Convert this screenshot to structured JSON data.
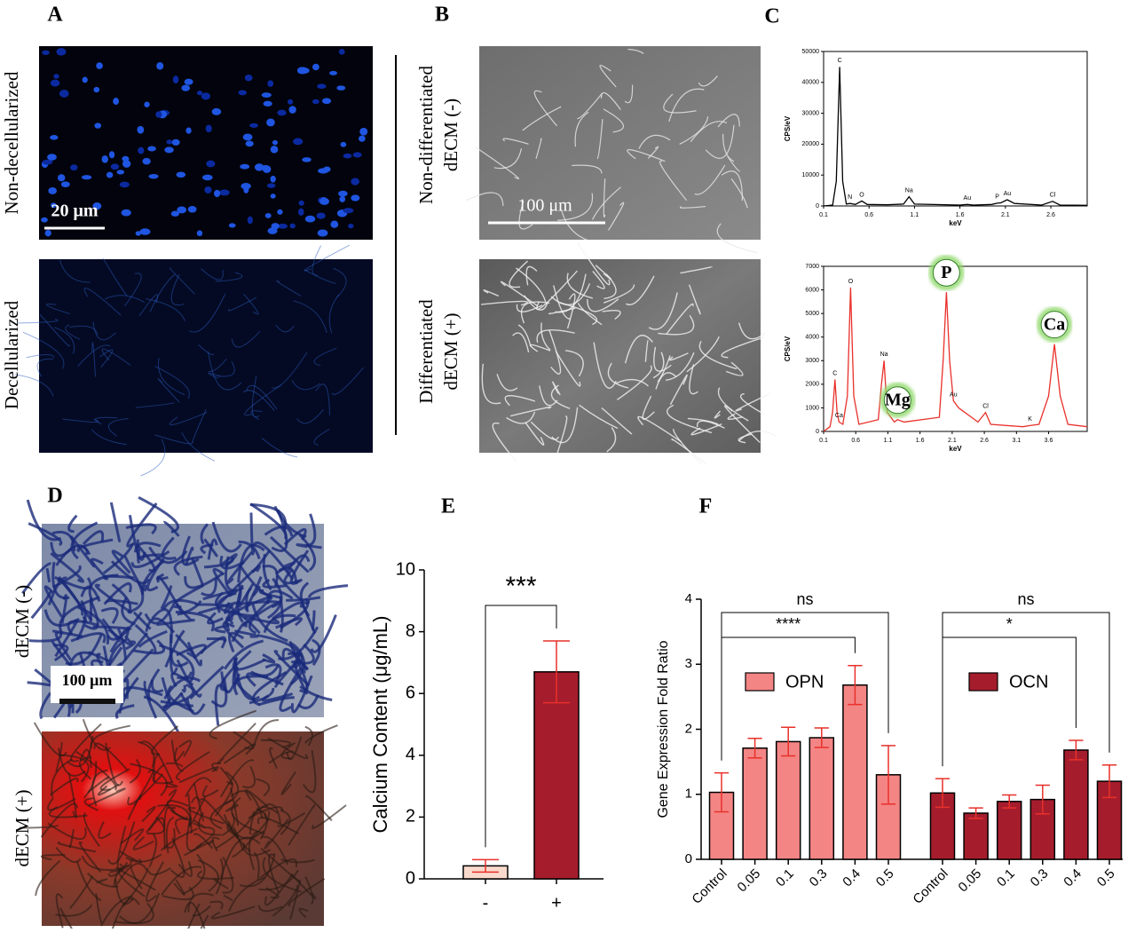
{
  "panel_labels": [
    "A",
    "B",
    "C",
    "D",
    "E",
    "F"
  ],
  "image_labels": {
    "a": [
      "Non-decellularized",
      "Decellularized"
    ],
    "b": [
      [
        "Non-differentiated",
        "dECM (-)"
      ],
      [
        "Differentiated",
        "dECM (+)"
      ]
    ],
    "d": [
      "dECM (-)",
      "dECM (+)"
    ]
  },
  "scale_bars": [
    "20 μm",
    "100 μm",
    "100 μm"
  ],
  "chart_data": [
    {
      "type": "line",
      "ylabel": "CPS/eV",
      "xlabel": "keV",
      "color": "#000000",
      "x": [
        0.1,
        0.2,
        0.24,
        0.277,
        0.31,
        0.35,
        0.39,
        0.45,
        0.52,
        0.58,
        0.8,
        0.98,
        1.04,
        1.1,
        1.6,
        1.68,
        1.75,
        1.95,
        2.01,
        2.05,
        2.12,
        2.2,
        2.5,
        2.62,
        2.7,
        3.0
      ],
      "values": [
        0,
        300,
        8000,
        45000,
        8000,
        600,
        800,
        500,
        1600,
        500,
        400,
        600,
        3000,
        600,
        300,
        500,
        300,
        500,
        900,
        1000,
        2000,
        800,
        300,
        1500,
        300,
        200
      ],
      "xlim": [
        0.1,
        3.0
      ],
      "xticks": [
        0.1,
        0.6,
        1.1,
        1.6,
        2.1,
        2.6
      ],
      "ylim": [
        0,
        50000
      ],
      "yticks": [
        0,
        10000,
        20000,
        30000,
        40000,
        50000
      ],
      "annotations": [
        {
          "text": "C",
          "x": 0.277
        },
        {
          "text": "N",
          "x": 0.39
        },
        {
          "text": "O",
          "x": 0.52
        },
        {
          "text": "Na",
          "x": 1.04
        },
        {
          "text": "Au",
          "x": 1.68
        },
        {
          "text": "P",
          "x": 2.01
        },
        {
          "text": "Au",
          "x": 2.12
        },
        {
          "text": "Cl",
          "x": 2.62
        }
      ]
    },
    {
      "type": "line",
      "ylabel": "CPS/eV",
      "xlabel": "keV",
      "color": "#e8302a",
      "x": [
        0.1,
        0.2,
        0.24,
        0.277,
        0.31,
        0.34,
        0.4,
        0.47,
        0.52,
        0.57,
        0.65,
        0.95,
        1.0,
        1.04,
        1.09,
        1.2,
        1.25,
        1.35,
        1.9,
        1.96,
        2.01,
        2.06,
        2.12,
        2.2,
        2.5,
        2.62,
        2.7,
        3.2,
        3.31,
        3.45,
        3.6,
        3.69,
        3.78,
        3.9,
        4.2
      ],
      "values": [
        0,
        200,
        800,
        2200,
        800,
        400,
        300,
        1500,
        6100,
        1500,
        300,
        500,
        2000,
        3000,
        800,
        400,
        500,
        400,
        600,
        3000,
        5900,
        3000,
        1300,
        1000,
        400,
        800,
        300,
        200,
        250,
        300,
        1500,
        3700,
        1500,
        300,
        200
      ],
      "xlim": [
        0.1,
        4.2
      ],
      "xticks": [
        0.1,
        0.6,
        1.1,
        1.6,
        2.1,
        2.6,
        3.1,
        3.6
      ],
      "ylim": [
        0,
        7000
      ],
      "yticks": [
        0,
        1000,
        2000,
        3000,
        4000,
        5000,
        6000,
        7000
      ],
      "annotations": [
        {
          "text": "C",
          "x": 0.277
        },
        {
          "text": "Ca",
          "x": 0.34
        },
        {
          "text": "O",
          "x": 0.52
        },
        {
          "text": "Na",
          "x": 1.04
        },
        {
          "text": "Mg",
          "x": 1.25,
          "circled": true
        },
        {
          "text": "P",
          "x": 2.01,
          "circled": true
        },
        {
          "text": "Au",
          "x": 2.12
        },
        {
          "text": "Cl",
          "x": 2.62
        },
        {
          "text": "K",
          "x": 3.31
        },
        {
          "text": "Ca",
          "x": 3.69,
          "circled": true
        }
      ]
    },
    {
      "type": "bar",
      "ylabel": "Calcium Content (μg/mL)",
      "categories": [
        "-",
        "+"
      ],
      "values": [
        0.42,
        6.7
      ],
      "errors": [
        0.2,
        1.0
      ],
      "colors": [
        "#f9d9cc",
        "#a51d2d"
      ],
      "error_color": "#e8302a",
      "ylim": [
        0,
        10
      ],
      "yticks": [
        0,
        2,
        4,
        6,
        8,
        10
      ],
      "significance": [
        {
          "label": "***",
          "between": [
            0,
            1
          ]
        }
      ]
    },
    {
      "type": "bar",
      "ylabel": "Gene Expression Fold Ratio",
      "categories": [
        "Control",
        "0.05",
        "0.1",
        "0.3",
        "0.4",
        "0.5"
      ],
      "series": [
        {
          "name": "OPN",
          "color": "#f48585",
          "values": [
            1.03,
            1.71,
            1.81,
            1.87,
            2.68,
            1.3
          ],
          "errors": [
            0.3,
            0.15,
            0.22,
            0.15,
            0.3,
            0.45
          ]
        },
        {
          "name": "OCN",
          "color": "#a51d2d",
          "values": [
            1.02,
            0.71,
            0.89,
            0.92,
            1.68,
            1.2
          ],
          "errors": [
            0.22,
            0.08,
            0.1,
            0.22,
            0.15,
            0.25
          ]
        }
      ],
      "error_color": "#e8302a",
      "ylim": [
        0,
        4
      ],
      "yticks": [
        0,
        1,
        2,
        3,
        4
      ],
      "significance": [
        {
          "label": "ns",
          "series": 0,
          "between": [
            0,
            5
          ]
        },
        {
          "label": "****",
          "series": 0,
          "between": [
            0,
            4
          ]
        },
        {
          "label": "ns",
          "series": 1,
          "between": [
            0,
            5
          ]
        },
        {
          "label": "*",
          "series": 1,
          "between": [
            0,
            4
          ]
        }
      ]
    }
  ]
}
